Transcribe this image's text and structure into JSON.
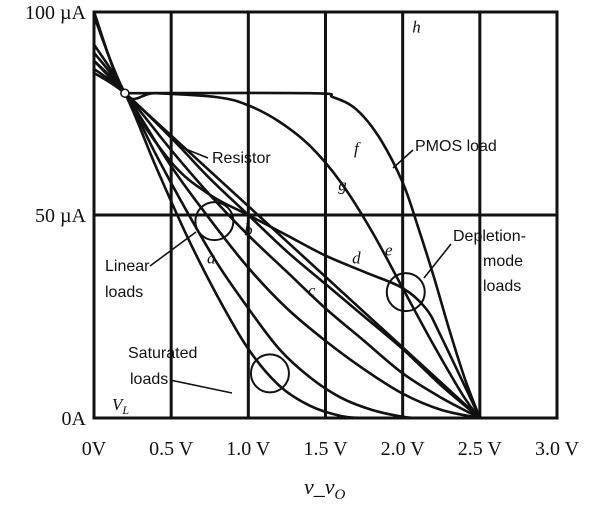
{
  "chart_data": {
    "type": "line",
    "xlabel": "v_v",
    "xlabel_sub": "O",
    "xlim": [
      0,
      3.0
    ],
    "ylim": [
      0,
      100
    ],
    "x_ticks": [
      {
        "value": 0,
        "label": "0V"
      },
      {
        "value": 0.5,
        "label": "0.5 V"
      },
      {
        "value": 1.0,
        "label": "1.0 V"
      },
      {
        "value": 1.5,
        "label": "1.5 V"
      },
      {
        "value": 2.0,
        "label": "2.0 V"
      },
      {
        "value": 2.5,
        "label": "2.5 V"
      },
      {
        "value": 3.0,
        "label": "3.0 V"
      }
    ],
    "y_ticks": [
      {
        "value": 0,
        "label": "0A"
      },
      {
        "value": 50,
        "label": "50 µA"
      },
      {
        "value": 100,
        "label": "100 µA"
      }
    ],
    "grid": true,
    "series": [
      {
        "name": "a",
        "x": [
          0,
          0.2,
          0.4,
          0.6,
          0.8,
          1.0,
          1.2,
          1.4,
          1.6,
          1.75
        ],
        "y": [
          92,
          80,
          62,
          45,
          30,
          17,
          8,
          3,
          0.5,
          0
        ]
      },
      {
        "name": "b",
        "x": [
          0,
          0.2,
          0.4,
          0.6,
          0.8,
          1.0,
          1.2,
          1.4,
          1.6,
          1.8,
          2.0,
          2.1
        ],
        "y": [
          90,
          80,
          65,
          51,
          38,
          27,
          17,
          10,
          5,
          2,
          0.3,
          0
        ]
      },
      {
        "name": "c",
        "x": [
          0,
          0.2,
          0.5,
          0.75,
          1.0,
          1.25,
          1.5,
          1.75,
          2.0,
          2.25,
          2.5
        ],
        "y": [
          88,
          80,
          62,
          49,
          37,
          27,
          19,
          12,
          6,
          2,
          0
        ]
      },
      {
        "name": "d",
        "x": [
          0,
          0.2,
          0.5,
          0.75,
          1.0,
          1.25,
          1.5,
          1.75,
          2.0,
          2.25,
          2.5
        ],
        "y": [
          86,
          80,
          66,
          55,
          45,
          36,
          27,
          19,
          11,
          5,
          0
        ]
      },
      {
        "name": "e",
        "x": [
          0,
          0.2,
          0.5,
          0.75,
          1.0,
          1.25,
          1.5,
          1.75,
          2.0,
          2.25,
          2.5
        ],
        "y": [
          85,
          80,
          69,
          59,
          50,
          41,
          33,
          25,
          17,
          8,
          0
        ]
      },
      {
        "name": "f",
        "x": [
          0,
          0.2,
          0.5,
          0.75,
          1.0,
          1.25,
          1.5,
          1.75,
          2.0,
          2.15,
          2.25,
          2.5
        ],
        "y": [
          99,
          80,
          63,
          55,
          50,
          45,
          40,
          36,
          32,
          27,
          20,
          0
        ]
      },
      {
        "name": "g",
        "x": [
          0,
          0.2,
          0.4,
          0.8,
          1.0,
          1.2,
          1.4,
          1.6,
          1.8,
          2.0,
          2.2,
          2.4,
          2.5
        ],
        "y": [
          100,
          80,
          80,
          79,
          77,
          73,
          67,
          58,
          46,
          32,
          18,
          5,
          0
        ]
      },
      {
        "name": "h",
        "x": [
          0.2,
          1.4,
          1.55,
          1.7,
          1.85,
          2.0,
          2.1,
          2.2,
          2.3,
          2.4,
          2.5
        ],
        "y": [
          80,
          80,
          79,
          76,
          69,
          58,
          47,
          35,
          22,
          10,
          0
        ]
      },
      {
        "name": "Resistor",
        "x": [
          0,
          0.2,
          2.5
        ],
        "y": [
          88,
          80,
          0
        ]
      }
    ],
    "curve_labels": [
      {
        "text": "a",
        "x": 0.76,
        "y": 38
      },
      {
        "text": "b",
        "x": 1.0,
        "y": 45
      },
      {
        "text": "c",
        "x": 1.41,
        "y": 30
      },
      {
        "text": "d",
        "x": 1.7,
        "y": 38
      },
      {
        "text": "e",
        "x": 1.91,
        "y": 40
      },
      {
        "text": "f",
        "x": 1.7,
        "y": 65
      },
      {
        "text": "g",
        "x": 1.61,
        "y": 56
      },
      {
        "text": "h",
        "x": 2.09,
        "y": 95
      }
    ],
    "annotations": [
      {
        "text": "Resistor",
        "x": 0.82,
        "y": 24,
        "tx": 0.84,
        "ty": 25
      },
      {
        "text": "PMOS load",
        "x": 2.07,
        "y": 27,
        "tx": 2.11,
        "ty": 27
      },
      {
        "text": "Depletion-",
        "x": 2.58,
        "y": 37,
        "tx": 2.58,
        "ty": 38
      },
      {
        "text": "mode",
        "x": 2.62,
        "y": 43
      },
      {
        "text": "loads",
        "x": 2.62,
        "y": 50
      },
      {
        "text": "Linear",
        "x": 0.15,
        "y": 58,
        "tx": 0.15,
        "ty": 58
      },
      {
        "text": "loads",
        "x": 0.15,
        "y": 65
      },
      {
        "text": "Saturated",
        "x": 0.32,
        "y": 84,
        "tx": 0.32,
        "ty": 84
      },
      {
        "text": "loads",
        "x": 0.32,
        "y": 90
      },
      {
        "text": "V_L",
        "x": 0.1,
        "y": 95
      }
    ],
    "circles": [
      {
        "x": 0.78,
        "y": 48.5
      },
      {
        "x": 2.02,
        "y": 31
      },
      {
        "x": 1.14,
        "y": 11
      }
    ]
  }
}
